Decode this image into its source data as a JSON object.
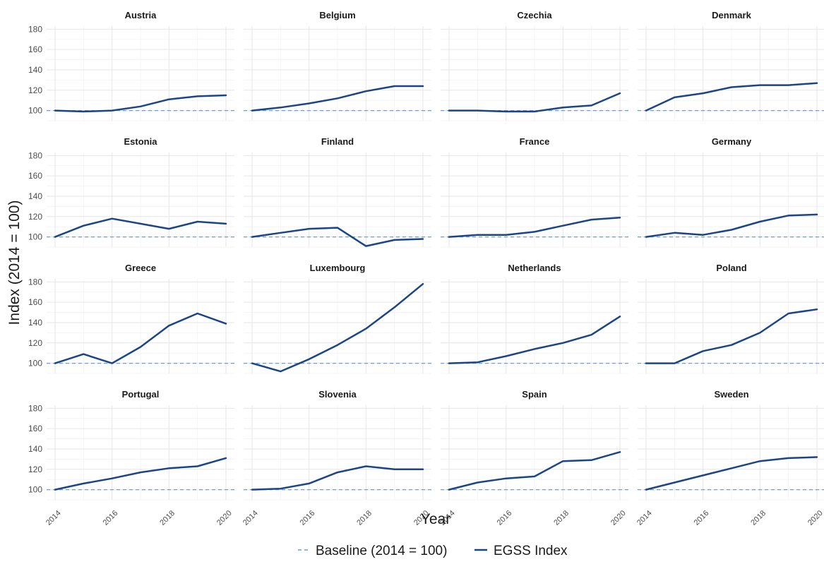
{
  "chart_data": {
    "type": "line",
    "xlabel": "Year",
    "ylabel": "Index (2014 = 100)",
    "x": [
      2014,
      2015,
      2016,
      2017,
      2018,
      2019,
      2020
    ],
    "x_ticks": [
      2014,
      2016,
      2018,
      2020
    ],
    "ylim": [
      90,
      183
    ],
    "y_ticks": [
      100,
      120,
      140,
      160,
      180
    ],
    "grid": true,
    "baseline": {
      "name": "Baseline (2014 = 100)",
      "value": 100,
      "color": "#6c9fd8",
      "style": "dashed"
    },
    "series_style": {
      "name": "EGSS Index",
      "color": "#1c4587"
    },
    "legend": {
      "position": "bottom",
      "entries": [
        "Baseline (2014 = 100)",
        "EGSS Index"
      ]
    },
    "panels": [
      {
        "title": "Austria",
        "values": [
          100,
          99,
          100,
          104,
          111,
          114,
          115
        ]
      },
      {
        "title": "Belgium",
        "values": [
          100,
          103,
          107,
          112,
          119,
          124,
          124
        ]
      },
      {
        "title": "Czechia",
        "values": [
          100,
          100,
          99,
          99,
          103,
          105,
          117
        ]
      },
      {
        "title": "Denmark",
        "values": [
          100,
          113,
          117,
          123,
          125,
          125,
          127
        ]
      },
      {
        "title": "Estonia",
        "values": [
          100,
          111,
          118,
          113,
          108,
          115,
          113
        ]
      },
      {
        "title": "Finland",
        "values": [
          100,
          104,
          108,
          109,
          91,
          97,
          98
        ]
      },
      {
        "title": "France",
        "values": [
          100,
          102,
          102,
          105,
          111,
          117,
          119
        ]
      },
      {
        "title": "Germany",
        "values": [
          100,
          104,
          102,
          107,
          115,
          121,
          122
        ]
      },
      {
        "title": "Greece",
        "values": [
          100,
          109,
          100,
          116,
          137,
          149,
          139
        ]
      },
      {
        "title": "Luxembourg",
        "values": [
          100,
          92,
          104,
          118,
          134,
          155,
          178
        ]
      },
      {
        "title": "Netherlands",
        "values": [
          100,
          101,
          107,
          114,
          120,
          128,
          146
        ]
      },
      {
        "title": "Poland",
        "values": [
          100,
          100,
          112,
          118,
          130,
          149,
          153
        ]
      },
      {
        "title": "Portugal",
        "values": [
          100,
          106,
          111,
          117,
          121,
          123,
          131
        ]
      },
      {
        "title": "Slovenia",
        "values": [
          100,
          101,
          106,
          117,
          123,
          120,
          120
        ]
      },
      {
        "title": "Spain",
        "values": [
          100,
          107,
          111,
          113,
          128,
          129,
          137
        ]
      },
      {
        "title": "Sweden",
        "values": [
          100,
          107,
          114,
          121,
          128,
          131,
          132
        ]
      }
    ]
  }
}
